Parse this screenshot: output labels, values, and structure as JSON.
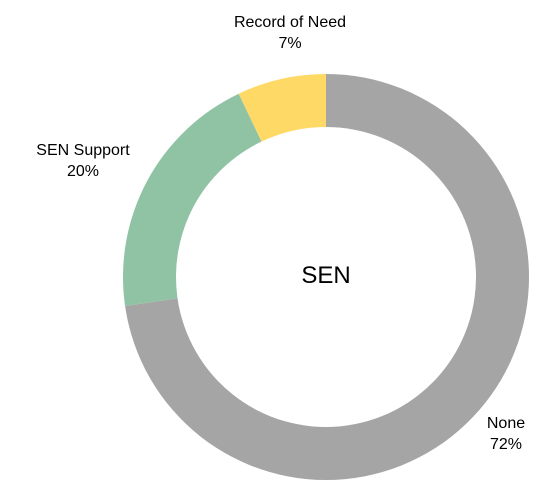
{
  "chart_data": {
    "type": "pie",
    "subtype": "donut",
    "center_label": "SEN",
    "slices": [
      {
        "label": "None",
        "value": 72,
        "value_label": "72%",
        "color": "#a5a5a5"
      },
      {
        "label": "SEN Support",
        "value": 20,
        "value_label": "20%",
        "color": "#8fc3a4"
      },
      {
        "label": "Record of Need",
        "value": 7,
        "value_label": "7%",
        "color": "#ffd966"
      }
    ],
    "legend": "none"
  }
}
